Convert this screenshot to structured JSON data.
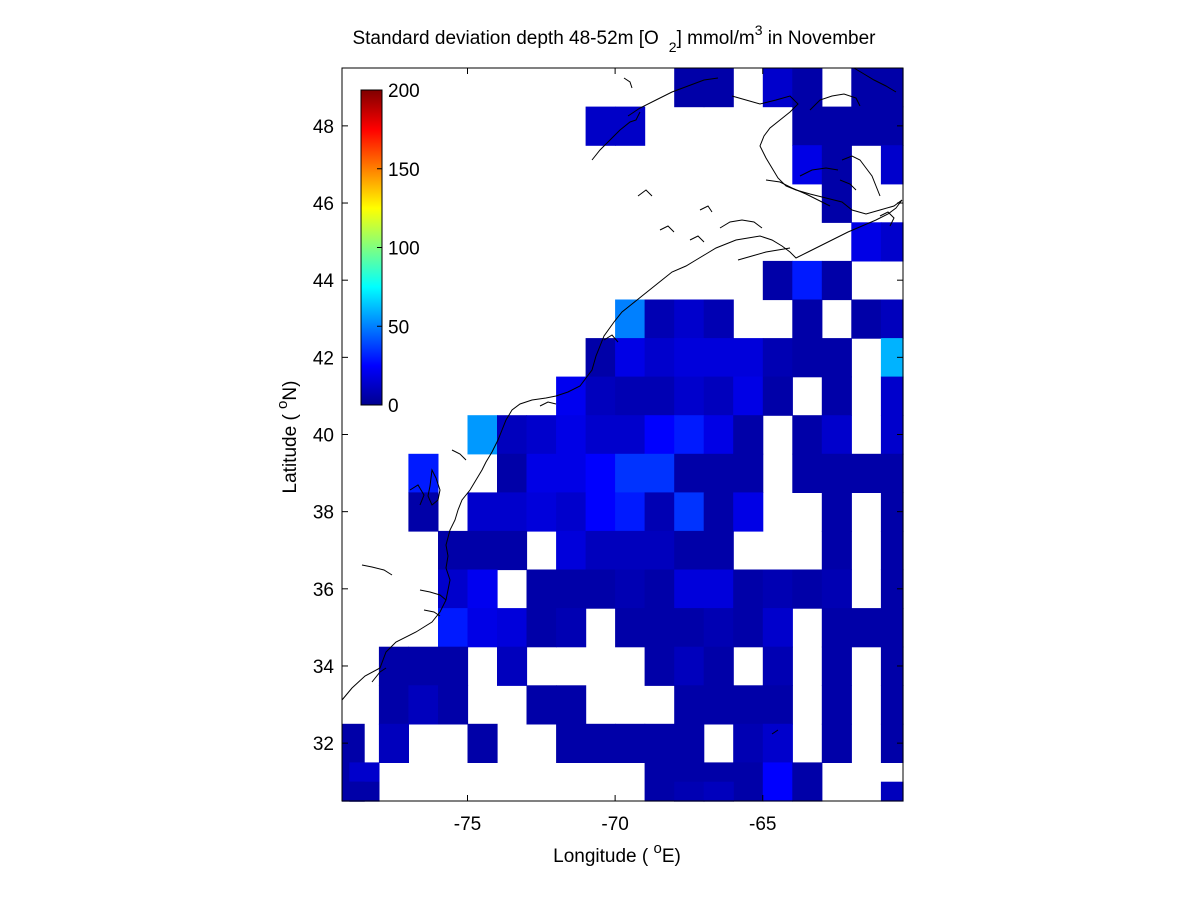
{
  "chart_data": {
    "type": "heatmap",
    "title": {
      "part1": "Standard deviation depth 48-52m [O",
      "sub": "2",
      "part2": "] mmol/m",
      "sup": "3",
      "part3": " in November"
    },
    "xlabel": {
      "prefix": "Longitude ( ",
      "sup": "o",
      "suffix": "E)"
    },
    "ylabel": {
      "prefix": "Latitude ( ",
      "sup": "o",
      "suffix": "N)"
    },
    "xlim": [
      -79.25,
      -60.25
    ],
    "ylim": [
      30.5,
      49.5
    ],
    "xticks": [
      -75,
      -70,
      -65
    ],
    "xtick_labels": [
      "-75",
      "-70",
      "-65"
    ],
    "yticks": [
      32,
      34,
      36,
      38,
      40,
      42,
      44,
      46,
      48
    ],
    "ytick_labels": [
      "32",
      "34",
      "36",
      "38",
      "40",
      "42",
      "44",
      "46",
      "48"
    ],
    "colorbar": {
      "colormap": "jet",
      "range": [
        0,
        200
      ],
      "ticks": [
        0,
        50,
        100,
        150,
        200
      ],
      "tick_labels": [
        "0",
        "50",
        "100",
        "150",
        "200"
      ]
    },
    "grid": false,
    "cell_size_deg": 1,
    "cells": [
      {
        "lon": -67.5,
        "lat": 49,
        "v": 8
      },
      {
        "lon": -66.5,
        "lat": 49,
        "v": 8
      },
      {
        "lon": -64.5,
        "lat": 49,
        "v": 15
      },
      {
        "lon": -63.5,
        "lat": 49,
        "v": 8
      },
      {
        "lon": -61.5,
        "lat": 49,
        "v": 8
      },
      {
        "lon": -60.5,
        "lat": 49,
        "v": 8
      },
      {
        "lon": -70.5,
        "lat": 48,
        "v": 14
      },
      {
        "lon": -69.5,
        "lat": 48,
        "v": 14
      },
      {
        "lon": -63.5,
        "lat": 48,
        "v": 8
      },
      {
        "lon": -62.5,
        "lat": 48,
        "v": 8
      },
      {
        "lon": -61.5,
        "lat": 48,
        "v": 8
      },
      {
        "lon": -60.5,
        "lat": 48,
        "v": 8
      },
      {
        "lon": -63.5,
        "lat": 47,
        "v": 20
      },
      {
        "lon": -62.5,
        "lat": 47,
        "v": 8
      },
      {
        "lon": -60.5,
        "lat": 47,
        "v": 15
      },
      {
        "lon": -62.5,
        "lat": 46,
        "v": 8
      },
      {
        "lon": -61.5,
        "lat": 45,
        "v": 20
      },
      {
        "lon": -60.5,
        "lat": 45,
        "v": 15
      },
      {
        "lon": -64.5,
        "lat": 44,
        "v": 8
      },
      {
        "lon": -63.5,
        "lat": 44,
        "v": 30
      },
      {
        "lon": -62.5,
        "lat": 44,
        "v": 8
      },
      {
        "lon": -69.5,
        "lat": 43,
        "v": 50
      },
      {
        "lon": -68.5,
        "lat": 43,
        "v": 10
      },
      {
        "lon": -67.5,
        "lat": 43,
        "v": 15
      },
      {
        "lon": -66.5,
        "lat": 43,
        "v": 10
      },
      {
        "lon": -63.5,
        "lat": 43,
        "v": 8
      },
      {
        "lon": -61.5,
        "lat": 43,
        "v": 8
      },
      {
        "lon": -60.5,
        "lat": 43,
        "v": 12
      },
      {
        "lon": -70.5,
        "lat": 42,
        "v": 8
      },
      {
        "lon": -69.5,
        "lat": 42,
        "v": 20
      },
      {
        "lon": -68.5,
        "lat": 42,
        "v": 15
      },
      {
        "lon": -67.5,
        "lat": 42,
        "v": 18
      },
      {
        "lon": -66.5,
        "lat": 42,
        "v": 18
      },
      {
        "lon": -65.5,
        "lat": 42,
        "v": 18
      },
      {
        "lon": -64.5,
        "lat": 42,
        "v": 10
      },
      {
        "lon": -63.5,
        "lat": 42,
        "v": 8
      },
      {
        "lon": -62.5,
        "lat": 42,
        "v": 8
      },
      {
        "lon": -60.5,
        "lat": 42,
        "v": 60
      },
      {
        "lon": -71.5,
        "lat": 41,
        "v": 22
      },
      {
        "lon": -70.5,
        "lat": 41,
        "v": 12
      },
      {
        "lon": -69.5,
        "lat": 41,
        "v": 10
      },
      {
        "lon": -68.5,
        "lat": 41,
        "v": 10
      },
      {
        "lon": -67.5,
        "lat": 41,
        "v": 15
      },
      {
        "lon": -66.5,
        "lat": 41,
        "v": 12
      },
      {
        "lon": -65.5,
        "lat": 41,
        "v": 20
      },
      {
        "lon": -64.5,
        "lat": 41,
        "v": 8
      },
      {
        "lon": -62.5,
        "lat": 41,
        "v": 8
      },
      {
        "lon": -60.5,
        "lat": 41,
        "v": 15
      },
      {
        "lon": -74.5,
        "lat": 40,
        "v": 55
      },
      {
        "lon": -73.5,
        "lat": 40,
        "v": 12
      },
      {
        "lon": -72.5,
        "lat": 40,
        "v": 15
      },
      {
        "lon": -71.5,
        "lat": 40,
        "v": 20
      },
      {
        "lon": -70.5,
        "lat": 40,
        "v": 15
      },
      {
        "lon": -69.5,
        "lat": 40,
        "v": 15
      },
      {
        "lon": -68.5,
        "lat": 40,
        "v": 25
      },
      {
        "lon": -67.5,
        "lat": 40,
        "v": 30
      },
      {
        "lon": -66.5,
        "lat": 40,
        "v": 20
      },
      {
        "lon": -65.5,
        "lat": 40,
        "v": 8
      },
      {
        "lon": -63.5,
        "lat": 40,
        "v": 8
      },
      {
        "lon": -62.5,
        "lat": 40,
        "v": 15
      },
      {
        "lon": -60.5,
        "lat": 40,
        "v": 15
      },
      {
        "lon": -76.5,
        "lat": 39,
        "v": 30
      },
      {
        "lon": -73.5,
        "lat": 39,
        "v": 8
      },
      {
        "lon": -72.5,
        "lat": 39,
        "v": 20
      },
      {
        "lon": -71.5,
        "lat": 39,
        "v": 20
      },
      {
        "lon": -70.5,
        "lat": 39,
        "v": 25
      },
      {
        "lon": -69.5,
        "lat": 39,
        "v": 35
      },
      {
        "lon": -68.5,
        "lat": 39,
        "v": 35
      },
      {
        "lon": -67.5,
        "lat": 39,
        "v": 8
      },
      {
        "lon": -66.5,
        "lat": 39,
        "v": 8
      },
      {
        "lon": -65.5,
        "lat": 39,
        "v": 8
      },
      {
        "lon": -63.5,
        "lat": 39,
        "v": 8
      },
      {
        "lon": -62.5,
        "lat": 39,
        "v": 8
      },
      {
        "lon": -61.5,
        "lat": 39,
        "v": 8
      },
      {
        "lon": -60.5,
        "lat": 39,
        "v": 8
      },
      {
        "lon": -76.5,
        "lat": 38,
        "v": 8
      },
      {
        "lon": -74.5,
        "lat": 38,
        "v": 15
      },
      {
        "lon": -73.5,
        "lat": 38,
        "v": 15
      },
      {
        "lon": -72.5,
        "lat": 38,
        "v": 18
      },
      {
        "lon": -71.5,
        "lat": 38,
        "v": 15
      },
      {
        "lon": -70.5,
        "lat": 38,
        "v": 25
      },
      {
        "lon": -69.5,
        "lat": 38,
        "v": 30
      },
      {
        "lon": -68.5,
        "lat": 38,
        "v": 10
      },
      {
        "lon": -67.5,
        "lat": 38,
        "v": 35
      },
      {
        "lon": -66.5,
        "lat": 38,
        "v": 8
      },
      {
        "lon": -65.5,
        "lat": 38,
        "v": 20
      },
      {
        "lon": -62.5,
        "lat": 38,
        "v": 8
      },
      {
        "lon": -60.5,
        "lat": 38,
        "v": 8
      },
      {
        "lon": -75.5,
        "lat": 37,
        "v": 8
      },
      {
        "lon": -74.5,
        "lat": 37,
        "v": 8
      },
      {
        "lon": -73.5,
        "lat": 37,
        "v": 8
      },
      {
        "lon": -71.5,
        "lat": 37,
        "v": 18
      },
      {
        "lon": -70.5,
        "lat": 37,
        "v": 12
      },
      {
        "lon": -69.5,
        "lat": 37,
        "v": 12
      },
      {
        "lon": -68.5,
        "lat": 37,
        "v": 12
      },
      {
        "lon": -67.5,
        "lat": 37,
        "v": 8
      },
      {
        "lon": -66.5,
        "lat": 37,
        "v": 8
      },
      {
        "lon": -62.5,
        "lat": 37,
        "v": 8
      },
      {
        "lon": -60.5,
        "lat": 37,
        "v": 8
      },
      {
        "lon": -75.5,
        "lat": 36,
        "v": 15
      },
      {
        "lon": -74.5,
        "lat": 36,
        "v": 22
      },
      {
        "lon": -72.5,
        "lat": 36,
        "v": 8
      },
      {
        "lon": -71.5,
        "lat": 36,
        "v": 8
      },
      {
        "lon": -70.5,
        "lat": 36,
        "v": 8
      },
      {
        "lon": -69.5,
        "lat": 36,
        "v": 10
      },
      {
        "lon": -68.5,
        "lat": 36,
        "v": 8
      },
      {
        "lon": -67.5,
        "lat": 36,
        "v": 18
      },
      {
        "lon": -66.5,
        "lat": 36,
        "v": 18
      },
      {
        "lon": -65.5,
        "lat": 36,
        "v": 8
      },
      {
        "lon": -64.5,
        "lat": 36,
        "v": 10
      },
      {
        "lon": -63.5,
        "lat": 36,
        "v": 8
      },
      {
        "lon": -62.5,
        "lat": 36,
        "v": 10
      },
      {
        "lon": -60.5,
        "lat": 36,
        "v": 8
      },
      {
        "lon": -75.5,
        "lat": 35,
        "v": 30
      },
      {
        "lon": -74.5,
        "lat": 35,
        "v": 20
      },
      {
        "lon": -73.5,
        "lat": 35,
        "v": 18
      },
      {
        "lon": -72.5,
        "lat": 35,
        "v": 8
      },
      {
        "lon": -71.5,
        "lat": 35,
        "v": 10
      },
      {
        "lon": -69.5,
        "lat": 35,
        "v": 8
      },
      {
        "lon": -68.5,
        "lat": 35,
        "v": 8
      },
      {
        "lon": -67.5,
        "lat": 35,
        "v": 8
      },
      {
        "lon": -66.5,
        "lat": 35,
        "v": 10
      },
      {
        "lon": -65.5,
        "lat": 35,
        "v": 8
      },
      {
        "lon": -64.5,
        "lat": 35,
        "v": 15
      },
      {
        "lon": -62.5,
        "lat": 35,
        "v": 8
      },
      {
        "lon": -61.5,
        "lat": 35,
        "v": 8
      },
      {
        "lon": -60.5,
        "lat": 35,
        "v": 8
      },
      {
        "lon": -77.5,
        "lat": 34,
        "v": 8
      },
      {
        "lon": -76.5,
        "lat": 34,
        "v": 8
      },
      {
        "lon": -75.5,
        "lat": 34,
        "v": 8
      },
      {
        "lon": -73.5,
        "lat": 34,
        "v": 12
      },
      {
        "lon": -68.5,
        "lat": 34,
        "v": 8
      },
      {
        "lon": -67.5,
        "lat": 34,
        "v": 12
      },
      {
        "lon": -66.5,
        "lat": 34,
        "v": 8
      },
      {
        "lon": -64.5,
        "lat": 34,
        "v": 10
      },
      {
        "lon": -62.5,
        "lat": 34,
        "v": 8
      },
      {
        "lon": -60.5,
        "lat": 34,
        "v": 8
      },
      {
        "lon": -77.5,
        "lat": 33,
        "v": 8
      },
      {
        "lon": -76.5,
        "lat": 33,
        "v": 12
      },
      {
        "lon": -75.5,
        "lat": 33,
        "v": 8
      },
      {
        "lon": -72.5,
        "lat": 33,
        "v": 8
      },
      {
        "lon": -71.5,
        "lat": 33,
        "v": 8
      },
      {
        "lon": -67.5,
        "lat": 33,
        "v": 8
      },
      {
        "lon": -66.5,
        "lat": 33,
        "v": 8
      },
      {
        "lon": -65.5,
        "lat": 33,
        "v": 8
      },
      {
        "lon": -64.5,
        "lat": 33,
        "v": 8
      },
      {
        "lon": -62.5,
        "lat": 33,
        "v": 8
      },
      {
        "lon": -60.5,
        "lat": 33,
        "v": 8
      },
      {
        "lon": -79,
        "lat": 32,
        "v": 8
      },
      {
        "lon": -77.5,
        "lat": 32,
        "v": 12
      },
      {
        "lon": -74.5,
        "lat": 32,
        "v": 8
      },
      {
        "lon": -71.5,
        "lat": 32,
        "v": 8
      },
      {
        "lon": -70.5,
        "lat": 32,
        "v": 8
      },
      {
        "lon": -69.5,
        "lat": 32,
        "v": 8
      },
      {
        "lon": -68.5,
        "lat": 32,
        "v": 8
      },
      {
        "lon": -67.5,
        "lat": 32,
        "v": 8
      },
      {
        "lon": -65.5,
        "lat": 32,
        "v": 10
      },
      {
        "lon": -64.5,
        "lat": 32,
        "v": 15
      },
      {
        "lon": -62.5,
        "lat": 32,
        "v": 8
      },
      {
        "lon": -60.5,
        "lat": 32,
        "v": 8
      },
      {
        "lon": -79,
        "lat": 31,
        "v": 8
      },
      {
        "lon": -78.5,
        "lat": 31,
        "v": 15
      },
      {
        "lon": -68.5,
        "lat": 31,
        "v": 8
      },
      {
        "lon": -67.5,
        "lat": 31,
        "v": 8
      },
      {
        "lon": -66.5,
        "lat": 31,
        "v": 8
      },
      {
        "lon": -65.5,
        "lat": 31,
        "v": 8
      },
      {
        "lon": -64.5,
        "lat": 31,
        "v": 25
      },
      {
        "lon": -63.5,
        "lat": 31,
        "v": 8
      },
      {
        "lon": -79,
        "lat": 30.5,
        "v": 8
      },
      {
        "lon": -78.5,
        "lat": 30.5,
        "v": 8
      },
      {
        "lon": -67.5,
        "lat": 30.5,
        "v": 10
      },
      {
        "lon": -66.5,
        "lat": 30.5,
        "v": 12
      },
      {
        "lon": -60.5,
        "lat": 30.5,
        "v": 12
      }
    ]
  }
}
